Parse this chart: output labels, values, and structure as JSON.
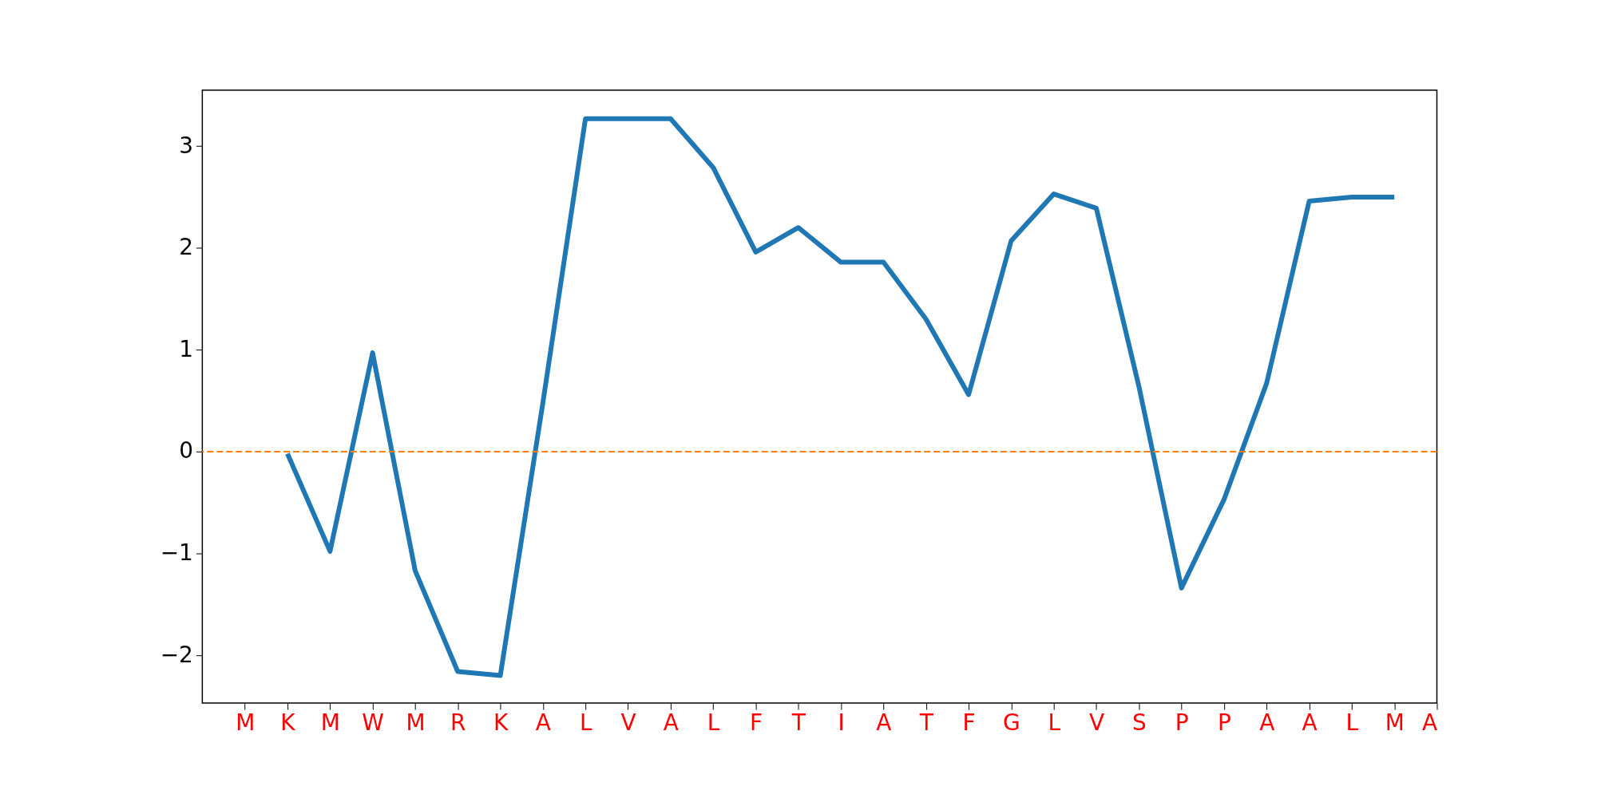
{
  "chart_data": {
    "type": "line",
    "categories": [
      "M",
      "K",
      "M",
      "W",
      "M",
      "R",
      "K",
      "A",
      "L",
      "V",
      "A",
      "L",
      "F",
      "T",
      "I",
      "A",
      "T",
      "F",
      "G",
      "L",
      "V",
      "S",
      "P",
      "P",
      "A",
      "A",
      "L",
      "M",
      "A"
    ],
    "series": [
      {
        "color": "#1f77b4",
        "values": [
          null,
          -0.02,
          -0.98,
          0.97,
          -1.17,
          -2.16,
          -2.2,
          0.48,
          3.27,
          3.27,
          3.27,
          2.79,
          1.96,
          2.2,
          1.86,
          1.86,
          1.3,
          0.56,
          2.07,
          2.53,
          2.39,
          0.64,
          -1.34,
          -0.47,
          0.67,
          2.46,
          2.5,
          2.5,
          null
        ]
      }
    ],
    "ylim": [
      -2.47,
      3.55
    ],
    "yticks": [
      {
        "value": -2,
        "label": "−2"
      },
      {
        "value": -1,
        "label": "−1"
      },
      0,
      1,
      2,
      3
    ],
    "ref_lines": [
      {
        "axis": "y",
        "value": 0,
        "color": "#ff7f0e",
        "line_style": "dashed"
      }
    ],
    "grid": false,
    "marker": "none",
    "line_style": "solid"
  }
}
